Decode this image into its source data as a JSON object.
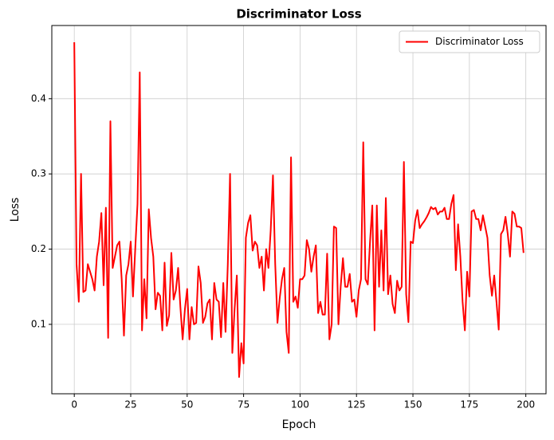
{
  "chart_data": {
    "type": "line",
    "title": "Discriminator Loss",
    "x_label": "Epoch",
    "y_label": "Loss",
    "x": [
      0,
      1,
      2,
      3,
      4,
      5,
      6,
      7,
      8,
      9,
      10,
      11,
      12,
      13,
      14,
      15,
      16,
      17,
      18,
      19,
      20,
      21,
      22,
      23,
      24,
      25,
      26,
      27,
      28,
      29,
      30,
      31,
      32,
      33,
      34,
      35,
      36,
      37,
      38,
      39,
      40,
      41,
      42,
      43,
      44,
      45,
      46,
      47,
      48,
      49,
      50,
      51,
      52,
      53,
      54,
      55,
      56,
      57,
      58,
      59,
      60,
      61,
      62,
      63,
      64,
      65,
      66,
      67,
      68,
      69,
      70,
      71,
      72,
      73,
      74,
      75,
      76,
      77,
      78,
      79,
      80,
      81,
      82,
      83,
      84,
      85,
      86,
      87,
      88,
      89,
      90,
      91,
      92,
      93,
      94,
      95,
      96,
      97,
      98,
      99,
      100,
      101,
      102,
      103,
      104,
      105,
      106,
      107,
      108,
      109,
      110,
      111,
      112,
      113,
      114,
      115,
      116,
      117,
      118,
      119,
      120,
      121,
      122,
      123,
      124,
      125,
      126,
      127,
      128,
      129,
      130,
      131,
      132,
      133,
      134,
      135,
      136,
      137,
      138,
      139,
      140,
      141,
      142,
      143,
      144,
      145,
      146,
      147,
      148,
      149,
      150,
      151,
      152,
      153,
      154,
      155,
      156,
      157,
      158,
      159,
      160,
      161,
      162,
      163,
      164,
      165,
      166,
      167,
      168,
      169,
      170,
      171,
      172,
      173,
      174,
      175,
      176,
      177,
      178,
      179,
      180,
      181,
      182,
      183,
      184,
      185,
      186,
      187,
      188,
      189,
      190,
      191,
      192,
      193,
      194,
      195,
      196,
      197,
      198,
      199
    ],
    "series": [
      {
        "name": "Discriminator Loss",
        "color": "#ff0000",
        "values": [
          0.475,
          0.18,
          0.13,
          0.3,
          0.143,
          0.145,
          0.18,
          0.17,
          0.16,
          0.145,
          0.19,
          0.21,
          0.248,
          0.152,
          0.255,
          0.082,
          0.37,
          0.175,
          0.19,
          0.205,
          0.21,
          0.16,
          0.085,
          0.165,
          0.18,
          0.21,
          0.137,
          0.2,
          0.26,
          0.435,
          0.092,
          0.16,
          0.108,
          0.253,
          0.215,
          0.19,
          0.12,
          0.142,
          0.138,
          0.092,
          0.182,
          0.098,
          0.112,
          0.195,
          0.133,
          0.145,
          0.175,
          0.123,
          0.08,
          0.12,
          0.147,
          0.08,
          0.123,
          0.1,
          0.102,
          0.177,
          0.155,
          0.102,
          0.11,
          0.128,
          0.133,
          0.08,
          0.155,
          0.133,
          0.13,
          0.083,
          0.155,
          0.09,
          0.18,
          0.3,
          0.062,
          0.12,
          0.165,
          0.03,
          0.075,
          0.048,
          0.215,
          0.235,
          0.245,
          0.198,
          0.21,
          0.205,
          0.175,
          0.19,
          0.145,
          0.2,
          0.175,
          0.225,
          0.298,
          0.18,
          0.102,
          0.135,
          0.16,
          0.175,
          0.09,
          0.062,
          0.322,
          0.13,
          0.137,
          0.122,
          0.16,
          0.16,
          0.165,
          0.212,
          0.2,
          0.17,
          0.19,
          0.205,
          0.115,
          0.13,
          0.113,
          0.113,
          0.194,
          0.08,
          0.1,
          0.23,
          0.228,
          0.1,
          0.15,
          0.188,
          0.15,
          0.15,
          0.167,
          0.13,
          0.133,
          0.11,
          0.145,
          0.16,
          0.342,
          0.16,
          0.153,
          0.21,
          0.258,
          0.092,
          0.258,
          0.15,
          0.225,
          0.145,
          0.268,
          0.14,
          0.165,
          0.127,
          0.115,
          0.158,
          0.145,
          0.15,
          0.316,
          0.14,
          0.103,
          0.21,
          0.208,
          0.238,
          0.252,
          0.228,
          0.233,
          0.237,
          0.242,
          0.248,
          0.256,
          0.253,
          0.255,
          0.246,
          0.25,
          0.25,
          0.255,
          0.24,
          0.24,
          0.26,
          0.272,
          0.172,
          0.233,
          0.19,
          0.13,
          0.092,
          0.17,
          0.137,
          0.25,
          0.252,
          0.24,
          0.24,
          0.225,
          0.245,
          0.23,
          0.215,
          0.165,
          0.138,
          0.165,
          0.13,
          0.093,
          0.22,
          0.225,
          0.243,
          0.22,
          0.19,
          0.25,
          0.247,
          0.23,
          0.23,
          0.228,
          0.195
        ]
      }
    ],
    "xlim": [
      -9.95,
      208.95
    ],
    "ylim": [
      0.0077,
      0.4973
    ],
    "xticks": [
      0,
      25,
      50,
      75,
      100,
      125,
      150,
      175,
      200
    ],
    "yticks": [
      0.1,
      0.2,
      0.3,
      0.4
    ],
    "grid": true,
    "legend": "upper right"
  }
}
